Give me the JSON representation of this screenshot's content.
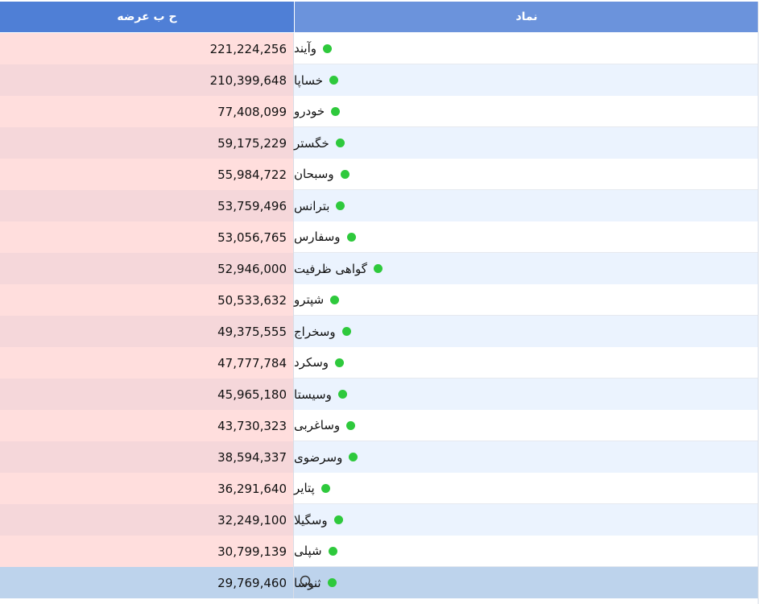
{
  "table": {
    "headers": {
      "volume": "ح ب عرضه",
      "symbol": "نماد"
    },
    "rows": [
      {
        "symbol": "وآیند",
        "volume": "221,224,256"
      },
      {
        "symbol": "خساپا",
        "volume": "210,399,648"
      },
      {
        "symbol": "خودرو",
        "volume": "77,408,099"
      },
      {
        "symbol": "خگستر",
        "volume": "59,175,229"
      },
      {
        "symbol": "وسبحان",
        "volume": "55,984,722"
      },
      {
        "symbol": "بترانس",
        "volume": "53,759,496"
      },
      {
        "symbol": "وسفارس",
        "volume": "53,056,765"
      },
      {
        "symbol": "گواهی ظرفیت",
        "volume": "52,946,000"
      },
      {
        "symbol": "شپترو",
        "volume": "50,533,632"
      },
      {
        "symbol": "وسخراج",
        "volume": "49,375,555"
      },
      {
        "symbol": "وسکرد",
        "volume": "47,777,784"
      },
      {
        "symbol": "وسیستا",
        "volume": "45,965,180"
      },
      {
        "symbol": "وساغربی",
        "volume": "43,730,323"
      },
      {
        "symbol": "وسرضوی",
        "volume": "38,594,337"
      },
      {
        "symbol": "پتایر",
        "volume": "36,291,640"
      },
      {
        "symbol": "وسگیلا",
        "volume": "32,249,100"
      },
      {
        "symbol": "شپلی",
        "volume": "30,799,139"
      },
      {
        "symbol": "ثنوسا",
        "volume": "29,769,460"
      }
    ],
    "selected_row": 17,
    "status_color": "#2ec93c",
    "icons": {
      "status": "status-dot-icon",
      "search": "search-icon"
    }
  }
}
